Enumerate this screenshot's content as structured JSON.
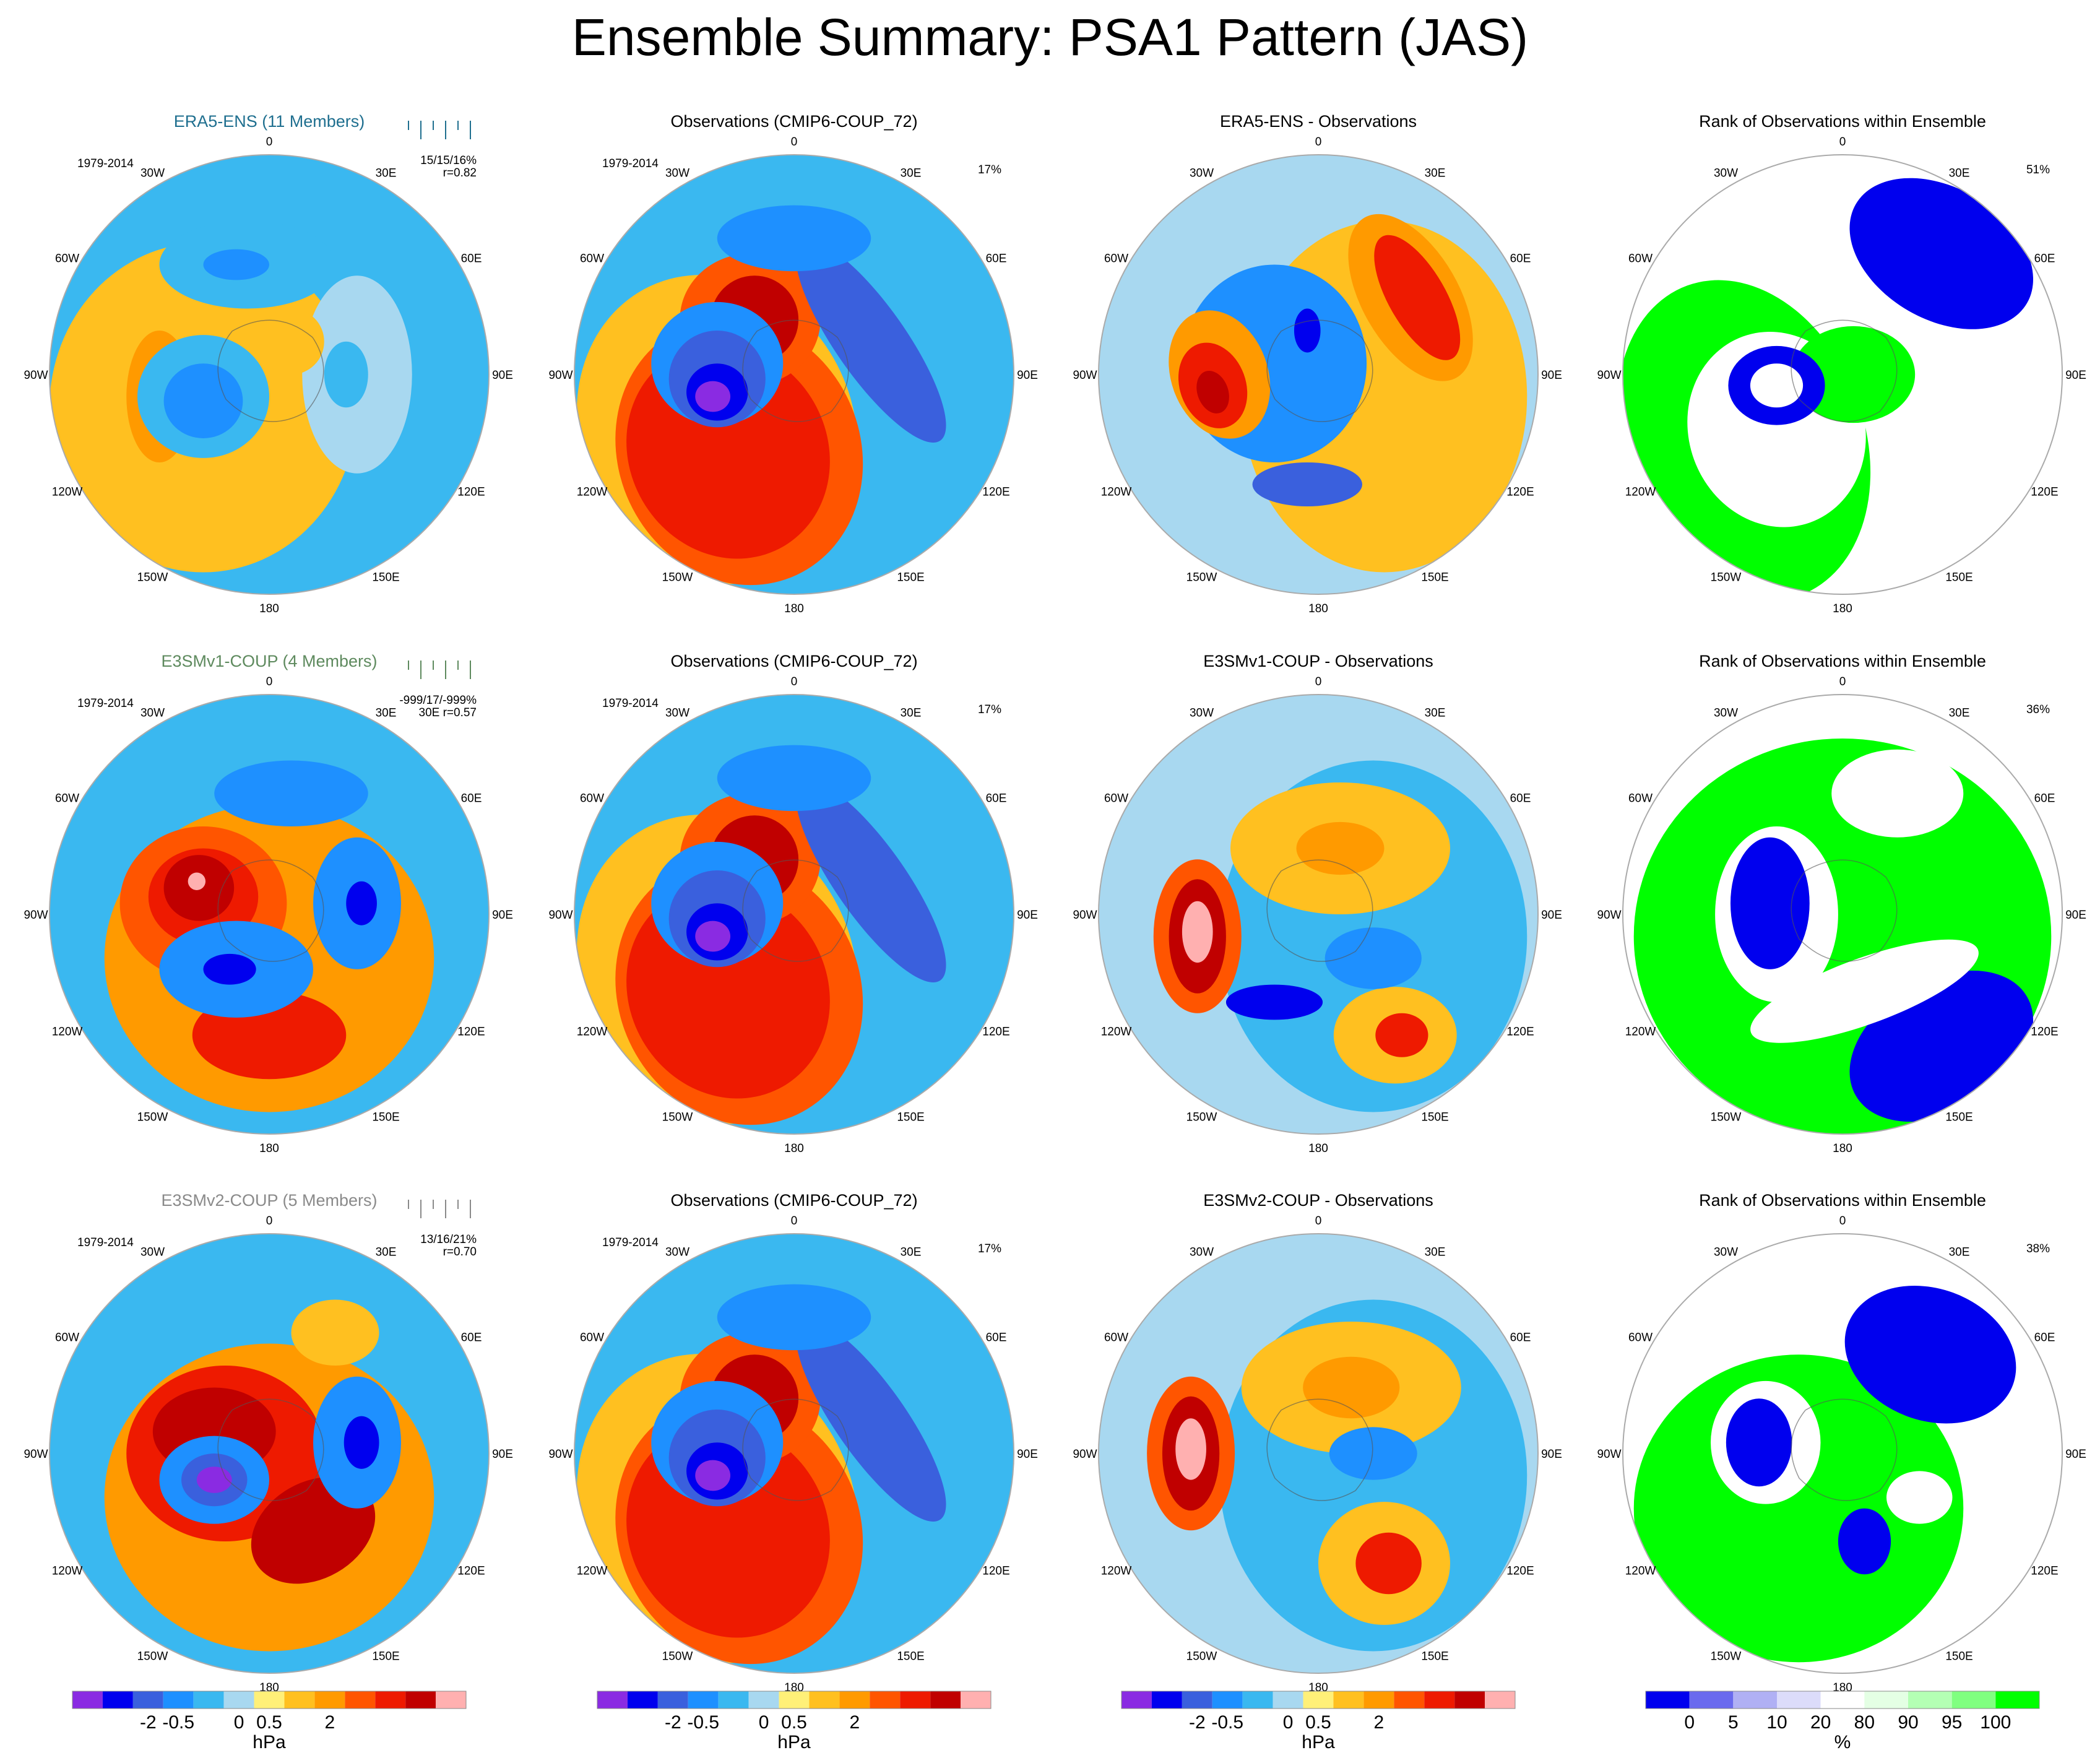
{
  "title": "Ensemble Summary: PSA1 Pattern (JAS)",
  "lon_labels": [
    "0",
    "30E",
    "60E",
    "90E",
    "120E",
    "150E",
    "180",
    "150W",
    "120W",
    "90W",
    "60W",
    "30W"
  ],
  "colors": {
    "title_era5": "#1f6f8f",
    "title_v1": "#5e8a5e",
    "title_v2": "#8a8a8a",
    "rank_low": "#0000ee",
    "rank_high": "#00ff00"
  },
  "rows": [
    {
      "ensemble_title": "ERA5-ENS (11 Members)",
      "period": "1979-2014",
      "stats": "15/15/16%",
      "corr": "r=0.82",
      "obs_title": "Observations (CMIP6-COUP_72)",
      "obs_period": "1979-2014",
      "obs_pct": "17%",
      "diff_title": "ERA5-ENS - Observations",
      "rank_title": "Rank of Observations within Ensemble",
      "rank_pct": "51%"
    },
    {
      "ensemble_title": "E3SMv1-COUP (4 Members)",
      "period": "1979-2014",
      "stats": "-999/17/-999%",
      "corr": "30E r=0.57",
      "obs_title": "Observations (CMIP6-COUP_72)",
      "obs_period": "1979-2014",
      "obs_pct": "17%",
      "diff_title": "E3SMv1-COUP - Observations",
      "rank_title": "Rank of Observations within Ensemble",
      "rank_pct": "36%"
    },
    {
      "ensemble_title": "E3SMv2-COUP (5 Members)",
      "period": "1979-2014",
      "stats": "13/16/21%",
      "corr": "r=0.70",
      "obs_title": "Observations (CMIP6-COUP_72)",
      "obs_period": "1979-2014",
      "obs_pct": "17%",
      "diff_title": "E3SMv2-COUP - Observations",
      "rank_title": "Rank of Observations within Ensemble",
      "rank_pct": "38%"
    }
  ],
  "chart_data": {
    "type": "heatmap",
    "projection": "south-polar-stereographic",
    "hpa_colorbar": {
      "unit": "hPa",
      "tick_labels": [
        "-2",
        "-0.5",
        "0",
        "0.5",
        "2"
      ],
      "colors": [
        "#8a2be2",
        "#0000ee",
        "#3a60dd",
        "#1e90ff",
        "#3ab8f0",
        "#a8d8f0",
        "#fff078",
        "#ffc020",
        "#ff9a00",
        "#ff5500",
        "#ee1a00",
        "#c00000",
        "#ffb0b0"
      ]
    },
    "rank_colorbar": {
      "unit": "%",
      "tick_labels": [
        "0",
        "5",
        "10",
        "20",
        "80",
        "90",
        "95",
        "100"
      ],
      "colors": [
        "#0000ee",
        "#6a6aee",
        "#b0b0f4",
        "#dcdcfa",
        "#ffffff",
        "#e4ffe4",
        "#b4ffb4",
        "#80ff80",
        "#00ff00"
      ]
    }
  }
}
